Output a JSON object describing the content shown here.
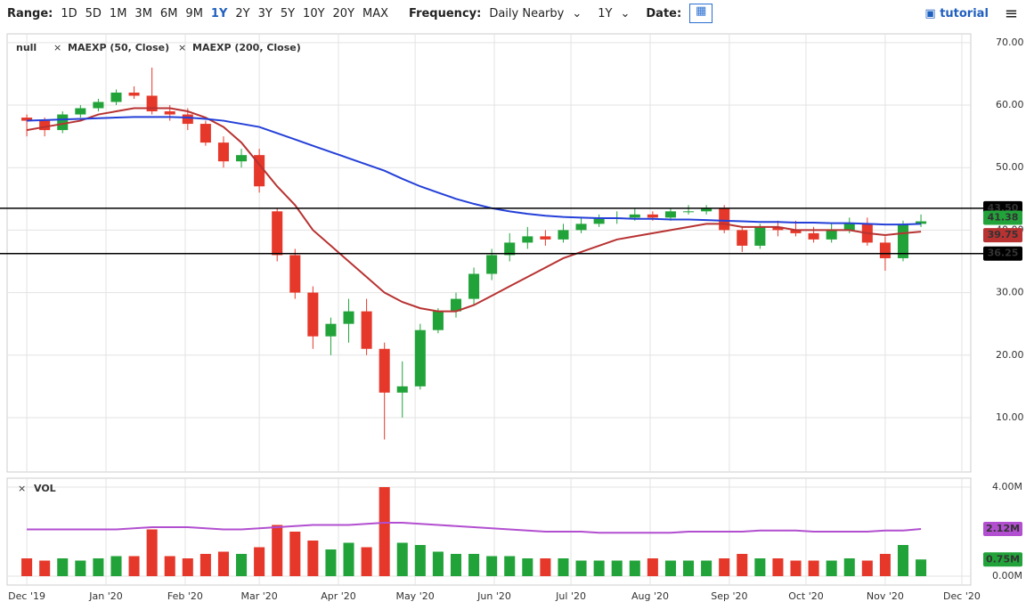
{
  "toolbar": {
    "range_label": "Range:",
    "ranges": [
      "1D",
      "5D",
      "1M",
      "3M",
      "6M",
      "9M",
      "1Y",
      "2Y",
      "3Y",
      "5Y",
      "10Y",
      "20Y",
      "MAX"
    ],
    "active_range": "1Y",
    "frequency_label": "Frequency:",
    "frequency": "Daily Nearby",
    "period": "1Y",
    "date_label": "Date:",
    "tutorial": "tutorial"
  },
  "chart_data": {
    "type": "candlestick",
    "name": "null",
    "up_color": "#22a33a",
    "down_color": "#e5382a",
    "x": [
      0,
      7,
      14,
      21,
      28,
      35,
      42,
      49,
      56,
      63,
      70,
      77,
      84,
      91,
      98,
      105,
      112,
      119,
      126,
      133,
      140,
      147,
      154,
      161,
      168,
      175,
      182,
      189,
      196,
      203,
      210,
      217,
      224,
      231,
      238,
      245,
      252,
      259,
      266,
      273,
      280,
      287,
      294,
      301,
      308,
      315,
      322,
      329,
      336,
      343,
      350
    ],
    "open": [
      58,
      57.5,
      56,
      58.5,
      59.5,
      60.5,
      62,
      61.5,
      59,
      58.5,
      57,
      54,
      51,
      52,
      43,
      36,
      30,
      23,
      25,
      27,
      21,
      14,
      15,
      24,
      27,
      29,
      33,
      36,
      38,
      39,
      38.5,
      40,
      41,
      42,
      42,
      42.5,
      42,
      43,
      43,
      43.5,
      40,
      37.5,
      40.5,
      40,
      39.5,
      38.5,
      40,
      41,
      38,
      35.5,
      41
    ],
    "high": [
      58.5,
      58,
      59,
      60,
      61,
      62.5,
      63,
      66,
      60,
      59.5,
      57.5,
      55,
      53,
      53,
      43.5,
      37,
      31,
      26,
      29,
      29,
      22,
      19,
      25,
      27.5,
      30,
      34,
      37,
      39.5,
      40.5,
      40,
      41,
      42,
      42.5,
      43,
      43.5,
      43,
      43.5,
      44,
      44,
      44,
      40.5,
      41,
      41.5,
      41.5,
      40.5,
      41,
      42,
      42,
      39,
      41.5,
      42.5
    ],
    "low": [
      55,
      55,
      55.5,
      58,
      59,
      60,
      61,
      58.5,
      57.5,
      56,
      53.5,
      50,
      50,
      46,
      35,
      29,
      21,
      20,
      22,
      20,
      6.5,
      10,
      14.5,
      23.5,
      26,
      28,
      32,
      35,
      37,
      37.5,
      38,
      39.5,
      40.5,
      41,
      41.5,
      41.5,
      41.5,
      42.5,
      42.5,
      39.5,
      36.5,
      37,
      39,
      39,
      38,
      38,
      39.5,
      37.5,
      33.5,
      35,
      40.5
    ],
    "close": [
      57.5,
      56,
      58.5,
      59.5,
      60.5,
      62,
      61.5,
      59,
      58.5,
      57,
      54,
      51,
      52,
      47,
      36,
      30,
      23,
      25,
      27,
      21,
      14,
      15,
      24,
      27,
      29,
      33,
      36,
      38,
      39,
      38.5,
      40,
      41,
      42,
      42,
      42.5,
      42,
      43,
      43,
      43.5,
      40,
      37.5,
      40.5,
      40,
      39.5,
      38.5,
      40,
      41,
      38,
      35.5,
      41,
      41.4
    ],
    "last_label": "41.38",
    "series": [
      {
        "name": "MAEXP (50, Close)",
        "color": "#b83232",
        "last_label": "39.75",
        "values": [
          56,
          56.5,
          57,
          57.5,
          58.5,
          59,
          59.5,
          59.5,
          59.5,
          59,
          58,
          56.5,
          54,
          50.5,
          47,
          44,
          40,
          37.5,
          35,
          32.5,
          30,
          28.5,
          27.5,
          27,
          27,
          28,
          29.5,
          31,
          32.5,
          34,
          35.5,
          36.5,
          37.5,
          38.5,
          39,
          39.5,
          40,
          40.5,
          41,
          41,
          40.5,
          40.5,
          40.5,
          40,
          40,
          40,
          40,
          39.5,
          39.2,
          39.5,
          39.75
        ]
      },
      {
        "name": "MAEXP (200, Close)",
        "color": "#2440d8",
        "values": [
          57.5,
          57.6,
          57.7,
          57.8,
          57.9,
          58,
          58.1,
          58.1,
          58.1,
          58,
          57.8,
          57.5,
          57,
          56.5,
          55.5,
          54.5,
          53.5,
          52.5,
          51.5,
          50.5,
          49.5,
          48.2,
          47,
          46,
          45,
          44.2,
          43.5,
          43,
          42.6,
          42.3,
          42.1,
          42,
          41.9,
          41.9,
          41.8,
          41.8,
          41.7,
          41.7,
          41.6,
          41.5,
          41.4,
          41.3,
          41.3,
          41.2,
          41.2,
          41.1,
          41.1,
          41,
          40.9,
          40.9,
          41
        ]
      }
    ],
    "hlines": [
      {
        "value": 43.5,
        "label": "43.50"
      },
      {
        "value": 36.25,
        "label": "36.25"
      }
    ],
    "xlim": [
      -7.7,
      369.5
    ],
    "xticks": [
      {
        "value": 0,
        "label": "Dec '19"
      },
      {
        "value": 31,
        "label": "Jan '20"
      },
      {
        "value": 62,
        "label": "Feb '20"
      },
      {
        "value": 91,
        "label": "Mar '20"
      },
      {
        "value": 122,
        "label": "Apr '20"
      },
      {
        "value": 152,
        "label": "May '20"
      },
      {
        "value": 183,
        "label": "Jun '20"
      },
      {
        "value": 213,
        "label": "Jul '20"
      },
      {
        "value": 244,
        "label": "Aug '20"
      },
      {
        "value": 275,
        "label": "Sep '20"
      },
      {
        "value": 305,
        "label": "Oct '20"
      },
      {
        "value": 336,
        "label": "Nov '20"
      },
      {
        "value": 366,
        "label": "Dec '20"
      }
    ],
    "ylim": [
      1.3,
      71.4
    ],
    "yticks": [
      {
        "value": 10,
        "label": "10.00"
      },
      {
        "value": 20,
        "label": "20.00"
      },
      {
        "value": 30,
        "label": "30.00"
      },
      {
        "value": 40,
        "label": "40.00"
      },
      {
        "value": 50,
        "label": "50.00"
      },
      {
        "value": 60,
        "label": "60.00"
      },
      {
        "value": 70,
        "label": "70.00"
      }
    ],
    "grid": true,
    "volume": {
      "title": "VOL",
      "values": [
        0.8,
        0.7,
        0.8,
        0.7,
        0.8,
        0.9,
        0.9,
        2.1,
        0.9,
        0.8,
        1.0,
        1.1,
        1.0,
        1.3,
        2.3,
        2.0,
        1.6,
        1.2,
        1.5,
        1.3,
        4.0,
        1.5,
        1.4,
        1.1,
        1.0,
        1.0,
        0.9,
        0.9,
        0.8,
        0.8,
        0.8,
        0.7,
        0.7,
        0.7,
        0.7,
        0.8,
        0.7,
        0.7,
        0.7,
        0.8,
        1.0,
        0.8,
        0.8,
        0.7,
        0.7,
        0.7,
        0.8,
        0.7,
        1.0,
        1.4,
        0.75
      ],
      "last_label": "0.75M",
      "average": {
        "color": "#b24fd0",
        "last_label": "2.12M",
        "values": [
          2.1,
          2.1,
          2.1,
          2.1,
          2.1,
          2.1,
          2.15,
          2.2,
          2.2,
          2.2,
          2.15,
          2.1,
          2.1,
          2.15,
          2.2,
          2.25,
          2.3,
          2.3,
          2.3,
          2.35,
          2.4,
          2.4,
          2.35,
          2.3,
          2.25,
          2.2,
          2.15,
          2.1,
          2.05,
          2.0,
          2.0,
          2.0,
          1.95,
          1.95,
          1.95,
          1.95,
          1.95,
          2.0,
          2.0,
          2.0,
          2.0,
          2.05,
          2.05,
          2.05,
          2.0,
          2.0,
          2.0,
          2.0,
          2.05,
          2.05,
          2.12
        ]
      },
      "ylim": [
        -0.4,
        4.4
      ],
      "yticks": [
        {
          "value": 0,
          "label": "0.00M"
        },
        {
          "value": 4,
          "label": "4.00M"
        }
      ]
    }
  }
}
